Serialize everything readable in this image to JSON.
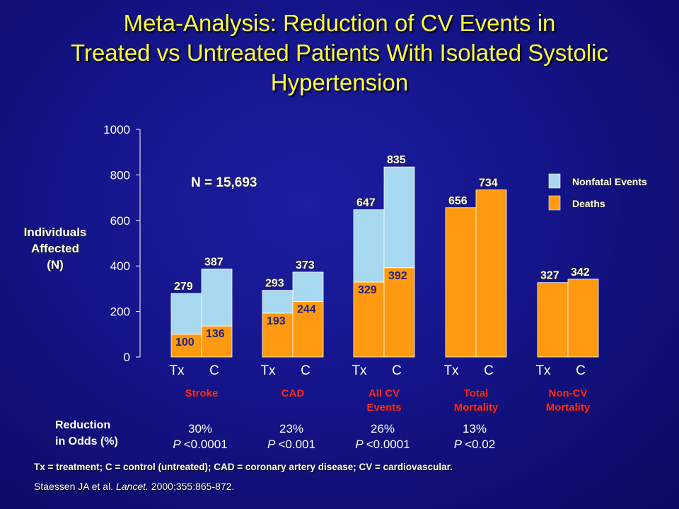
{
  "title_line1": "Meta-Analysis: Reduction of CV Events in",
  "title_line2": "Treated vs Untreated Patients With Isolated Systolic",
  "title_line3": "Hypertension",
  "n_label": "N = 15,693",
  "ylabel": [
    "Individuals",
    "Affected",
    "(N)"
  ],
  "reduction_label": [
    "Reduction",
    "in Odds (%)"
  ],
  "footnote": "Tx = treatment; C = control (untreated); CAD = coronary artery disease; CV = cardiovascular.",
  "citation": {
    "authors": "Staessen JA et al.",
    "journal": "Lancet.",
    "details": "2000;355:865-872."
  },
  "colors": {
    "nonfatal": "#a8d8f0",
    "deaths": "#ff9a10",
    "category_label": "#ff2a2a",
    "title": "#ffff33",
    "value_label": "#22227a"
  },
  "chart_data": {
    "type": "bar",
    "stacked": true,
    "ylim": [
      0,
      1000
    ],
    "yticks": [
      "0",
      "200",
      "400",
      "600",
      "800",
      "1000"
    ],
    "legend": {
      "position": "right",
      "entries": [
        {
          "name": "Nonfatal Events",
          "color": "#a8d8f0"
        },
        {
          "name": "Deaths",
          "color": "#ff9a10"
        }
      ]
    },
    "groups": [
      {
        "category": [
          "Stroke"
        ],
        "reduction": "30%",
        "p": "P <0.0001",
        "bars": [
          {
            "label": "Tx",
            "total": 279,
            "deaths": 100,
            "total_label": "279",
            "deaths_label": "100"
          },
          {
            "label": "C",
            "total": 387,
            "deaths": 136,
            "total_label": "387",
            "deaths_label": "136"
          }
        ]
      },
      {
        "category": [
          "CAD"
        ],
        "reduction": "23%",
        "p": "P <0.001",
        "bars": [
          {
            "label": "Tx",
            "total": 293,
            "deaths": 193,
            "total_label": "293",
            "deaths_label": "193"
          },
          {
            "label": "C",
            "total": 373,
            "deaths": 244,
            "total_label": "373",
            "deaths_label": "244"
          }
        ]
      },
      {
        "category": [
          "All CV",
          "Events"
        ],
        "reduction": "26%",
        "p": "P <0.0001",
        "bars": [
          {
            "label": "Tx",
            "total": 647,
            "deaths": 329,
            "total_label": "647",
            "deaths_label": "329"
          },
          {
            "label": "C",
            "total": 835,
            "deaths": 392,
            "total_label": "835",
            "deaths_label": "392"
          }
        ]
      },
      {
        "category": [
          "Total",
          "Mortality"
        ],
        "reduction": "13%",
        "p": "P <0.02",
        "bars": [
          {
            "label": "Tx",
            "total": 656,
            "deaths": 656,
            "total_label": "656",
            "deaths_label": ""
          },
          {
            "label": "C",
            "total": 734,
            "deaths": 734,
            "total_label": "734",
            "deaths_label": ""
          }
        ]
      },
      {
        "category": [
          "Non-CV",
          "Mortality"
        ],
        "reduction": "",
        "p": "",
        "bars": [
          {
            "label": "Tx",
            "total": 327,
            "deaths": 327,
            "total_label": "327",
            "deaths_label": ""
          },
          {
            "label": "C",
            "total": 342,
            "deaths": 342,
            "total_label": "342",
            "deaths_label": ""
          }
        ]
      }
    ]
  }
}
